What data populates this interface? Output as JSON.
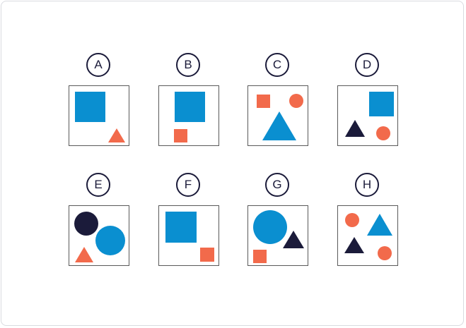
{
  "colors": {
    "blue": "#0a8fd0",
    "orange": "#f26a4b",
    "navy": "#1b1b3a",
    "border": "#5a5a5a"
  },
  "options": [
    {
      "label": "A",
      "shapes": [
        "blue-square",
        "orange-triangle"
      ]
    },
    {
      "label": "B",
      "shapes": [
        "blue-square",
        "orange-square"
      ]
    },
    {
      "label": "C",
      "shapes": [
        "orange-square",
        "orange-circle",
        "blue-triangle"
      ]
    },
    {
      "label": "D",
      "shapes": [
        "blue-square",
        "navy-triangle",
        "orange-circle"
      ]
    },
    {
      "label": "E",
      "shapes": [
        "navy-circle",
        "blue-circle",
        "orange-triangle"
      ]
    },
    {
      "label": "F",
      "shapes": [
        "blue-square",
        "orange-square"
      ]
    },
    {
      "label": "G",
      "shapes": [
        "blue-circle",
        "navy-triangle",
        "orange-square"
      ]
    },
    {
      "label": "H",
      "shapes": [
        "orange-circle",
        "blue-triangle",
        "navy-triangle",
        "orange-circle"
      ]
    }
  ]
}
